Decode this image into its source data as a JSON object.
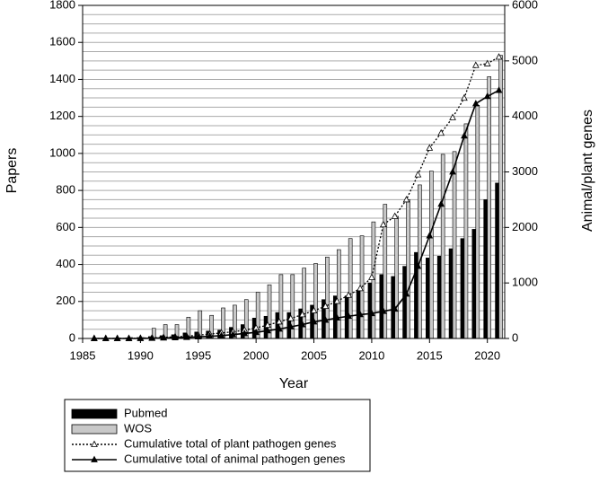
{
  "chart_data": {
    "type": "bar",
    "x_label": "Year",
    "y_label": "Papers",
    "y2_label": "Animal/plant genes",
    "x": [
      1986,
      1987,
      1988,
      1989,
      1990,
      1991,
      1992,
      1993,
      1994,
      1995,
      1996,
      1997,
      1998,
      1999,
      2000,
      2001,
      2002,
      2003,
      2004,
      2005,
      2006,
      2007,
      2008,
      2009,
      2010,
      2011,
      2012,
      2013,
      2014,
      2015,
      2016,
      2017,
      2018,
      2019,
      2020,
      2021
    ],
    "series": [
      {
        "name": "Pubmed",
        "type": "bar",
        "color": "#000000",
        "values": [
          0,
          0,
          2,
          3,
          5,
          10,
          15,
          20,
          30,
          35,
          40,
          45,
          60,
          75,
          110,
          120,
          140,
          140,
          160,
          180,
          210,
          230,
          230,
          260,
          300,
          345,
          335,
          390,
          465,
          435,
          445,
          485,
          540,
          590,
          750,
          840
        ]
      },
      {
        "name": "WOS",
        "type": "bar",
        "color": "#c8c8c8",
        "values": [
          0,
          0,
          2,
          5,
          5,
          55,
          75,
          75,
          115,
          150,
          125,
          165,
          180,
          210,
          250,
          290,
          345,
          345,
          380,
          405,
          440,
          480,
          540,
          555,
          630,
          725,
          660,
          750,
          830,
          905,
          995,
          1010,
          1160,
          1260,
          1415,
          1530
        ]
      },
      {
        "name": "Cumulative total of plant pathogen genes",
        "type": "line",
        "axis": "y2",
        "color": "#000000",
        "line_style": "dotted",
        "marker": "open-triangle",
        "values": [
          0,
          0,
          0,
          0,
          5,
          10,
          20,
          30,
          40,
          60,
          80,
          100,
          120,
          150,
          190,
          240,
          300,
          360,
          430,
          500,
          580,
          670,
          780,
          900,
          1100,
          2050,
          2200,
          2500,
          2950,
          3430,
          3700,
          3980,
          4330,
          4920,
          4950,
          5070
        ]
      },
      {
        "name": "Cumulative total of animal pathogen genes",
        "type": "line",
        "axis": "y2",
        "color": "#000000",
        "line_style": "solid",
        "marker": "filled-triangle",
        "values": [
          0,
          0,
          0,
          0,
          0,
          5,
          10,
          15,
          20,
          30,
          40,
          50,
          70,
          90,
          110,
          140,
          170,
          210,
          250,
          300,
          330,
          370,
          400,
          430,
          450,
          490,
          530,
          800,
          1300,
          1850,
          2420,
          3000,
          3650,
          4230,
          4360,
          4470
        ]
      }
    ],
    "xlim": [
      1985,
      2021.5
    ],
    "xticks": [
      1985,
      1990,
      1995,
      2000,
      2005,
      2010,
      2015,
      2020
    ],
    "ylim": [
      0,
      1800
    ],
    "yticks": [
      0,
      200,
      400,
      600,
      800,
      1000,
      1200,
      1400,
      1600,
      1800
    ],
    "y2lim": [
      0,
      6000
    ],
    "y2ticks": [
      0,
      1000,
      2000,
      3000,
      4000,
      5000,
      6000
    ],
    "grid": true,
    "grid_lines": [
      50,
      100,
      150,
      250,
      300,
      350,
      450,
      500,
      550,
      650,
      700,
      750,
      850,
      900,
      950,
      1050,
      1100,
      1150,
      1250,
      1300,
      1350,
      1450,
      1500,
      1550,
      1650,
      1700,
      1750
    ],
    "legend": "bottom"
  }
}
